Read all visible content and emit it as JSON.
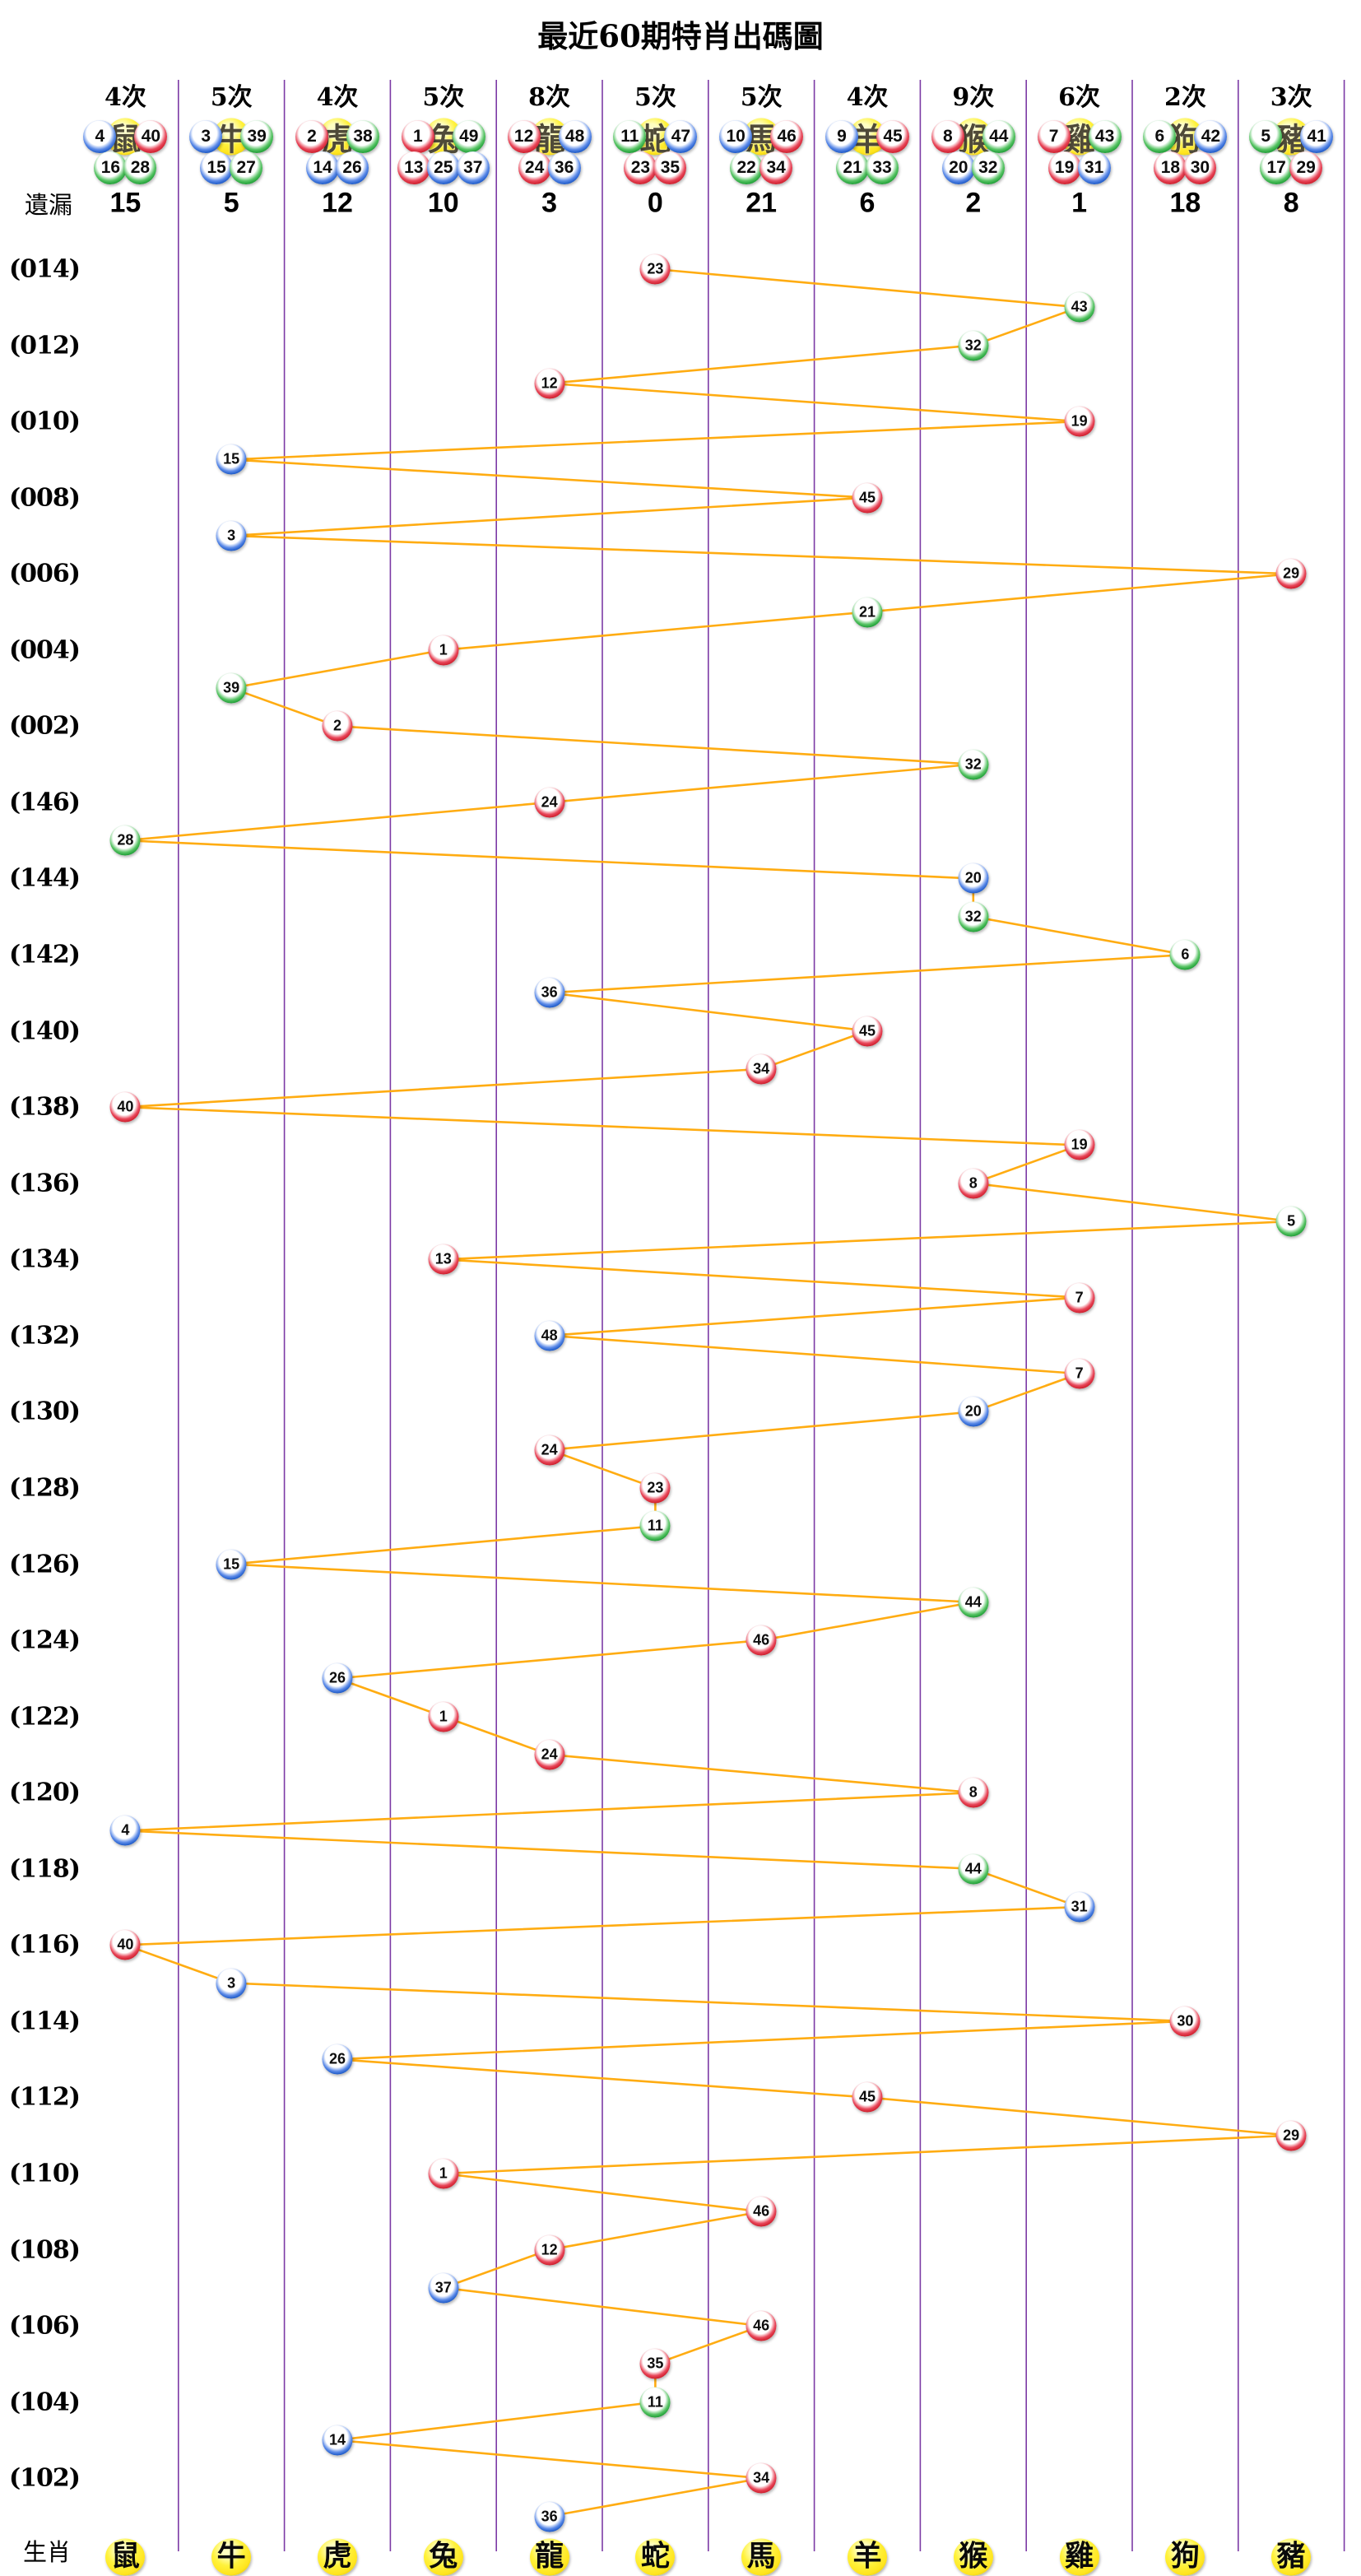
{
  "title": "最近60期特肖出碼圖",
  "labels": {
    "miss": "遺漏",
    "zodiac_row": "生肖"
  },
  "colors": {
    "red": "#d0202e",
    "blue": "#1f5bc8",
    "green": "#21a038",
    "yellow": "#ffe41e",
    "line": "#ffac12",
    "separator": "#7c3aa5"
  },
  "columns": [
    {
      "zodiac": "鼠",
      "times": "4次",
      "miss": "15",
      "main": [
        {
          "n": "4",
          "c": "blue"
        },
        {
          "n": "40",
          "c": "red"
        }
      ],
      "others": [
        {
          "n": "16",
          "c": "green"
        },
        {
          "n": "28",
          "c": "green"
        }
      ]
    },
    {
      "zodiac": "牛",
      "times": "5次",
      "miss": "5",
      "main": [
        {
          "n": "3",
          "c": "blue"
        },
        {
          "n": "39",
          "c": "green"
        }
      ],
      "others": [
        {
          "n": "15",
          "c": "blue"
        },
        {
          "n": "27",
          "c": "green"
        }
      ]
    },
    {
      "zodiac": "虎",
      "times": "4次",
      "miss": "12",
      "main": [
        {
          "n": "2",
          "c": "red"
        },
        {
          "n": "38",
          "c": "green"
        }
      ],
      "others": [
        {
          "n": "14",
          "c": "blue"
        },
        {
          "n": "26",
          "c": "blue"
        }
      ]
    },
    {
      "zodiac": "兔",
      "times": "5次",
      "miss": "10",
      "main": [
        {
          "n": "1",
          "c": "red"
        },
        {
          "n": "49",
          "c": "green"
        }
      ],
      "others": [
        {
          "n": "13",
          "c": "red"
        },
        {
          "n": "25",
          "c": "blue"
        },
        {
          "n": "37",
          "c": "blue"
        }
      ]
    },
    {
      "zodiac": "龍",
      "times": "8次",
      "miss": "3",
      "main": [
        {
          "n": "12",
          "c": "red"
        },
        {
          "n": "48",
          "c": "blue"
        }
      ],
      "others": [
        {
          "n": "24",
          "c": "red"
        },
        {
          "n": "36",
          "c": "blue"
        }
      ]
    },
    {
      "zodiac": "蛇",
      "times": "5次",
      "miss": "0",
      "main": [
        {
          "n": "11",
          "c": "green"
        },
        {
          "n": "47",
          "c": "blue"
        }
      ],
      "others": [
        {
          "n": "23",
          "c": "red"
        },
        {
          "n": "35",
          "c": "red"
        }
      ]
    },
    {
      "zodiac": "馬",
      "times": "5次",
      "miss": "21",
      "main": [
        {
          "n": "10",
          "c": "blue"
        },
        {
          "n": "46",
          "c": "red"
        }
      ],
      "others": [
        {
          "n": "22",
          "c": "green"
        },
        {
          "n": "34",
          "c": "red"
        }
      ]
    },
    {
      "zodiac": "羊",
      "times": "4次",
      "miss": "6",
      "main": [
        {
          "n": "9",
          "c": "blue"
        },
        {
          "n": "45",
          "c": "red"
        }
      ],
      "others": [
        {
          "n": "21",
          "c": "green"
        },
        {
          "n": "33",
          "c": "green"
        }
      ]
    },
    {
      "zodiac": "猴",
      "times": "9次",
      "miss": "2",
      "main": [
        {
          "n": "8",
          "c": "red"
        },
        {
          "n": "44",
          "c": "green"
        }
      ],
      "others": [
        {
          "n": "20",
          "c": "blue"
        },
        {
          "n": "32",
          "c": "green"
        }
      ]
    },
    {
      "zodiac": "雞",
      "times": "6次",
      "miss": "1",
      "main": [
        {
          "n": "7",
          "c": "red"
        },
        {
          "n": "43",
          "c": "green"
        }
      ],
      "others": [
        {
          "n": "19",
          "c": "red"
        },
        {
          "n": "31",
          "c": "blue"
        }
      ]
    },
    {
      "zodiac": "狗",
      "times": "2次",
      "miss": "18",
      "main": [
        {
          "n": "6",
          "c": "green"
        },
        {
          "n": "42",
          "c": "blue"
        }
      ],
      "others": [
        {
          "n": "18",
          "c": "red"
        },
        {
          "n": "30",
          "c": "red"
        }
      ]
    },
    {
      "zodiac": "豬",
      "times": "3次",
      "miss": "8",
      "main": [
        {
          "n": "5",
          "c": "green"
        },
        {
          "n": "41",
          "c": "blue"
        }
      ],
      "others": [
        {
          "n": "17",
          "c": "green"
        },
        {
          "n": "29",
          "c": "red"
        }
      ]
    }
  ],
  "chart_data": {
    "type": "line",
    "title": "最近60期特肖出碼圖",
    "x_categories": [
      "鼠",
      "牛",
      "虎",
      "兔",
      "龍",
      "蛇",
      "馬",
      "羊",
      "猴",
      "雞",
      "狗",
      "豬"
    ],
    "y_tick_labels": [
      "(014)",
      "(012)",
      "(010)",
      "(008)",
      "(006)",
      "(004)",
      "(002)",
      "(146)",
      "(144)",
      "(142)",
      "(140)",
      "(138)",
      "(136)",
      "(134)",
      "(132)",
      "(130)",
      "(128)",
      "(126)",
      "(124)",
      "(122)",
      "(120)",
      "(118)",
      "(116)",
      "(114)",
      "(112)",
      "(110)",
      "(108)",
      "(106)",
      "(104)",
      "(102)"
    ],
    "legend": "none",
    "grid": "vertical-only",
    "points": [
      {
        "p": "014",
        "z": "蛇",
        "n": 23,
        "c": "red"
      },
      {
        "p": "013",
        "z": "雞",
        "n": 43,
        "c": "green"
      },
      {
        "p": "012",
        "z": "猴",
        "n": 32,
        "c": "green"
      },
      {
        "p": "011",
        "z": "龍",
        "n": 12,
        "c": "red"
      },
      {
        "p": "010",
        "z": "雞",
        "n": 19,
        "c": "red"
      },
      {
        "p": "009",
        "z": "牛",
        "n": 15,
        "c": "blue"
      },
      {
        "p": "008",
        "z": "羊",
        "n": 45,
        "c": "red"
      },
      {
        "p": "007",
        "z": "牛",
        "n": 3,
        "c": "blue"
      },
      {
        "p": "006",
        "z": "豬",
        "n": 29,
        "c": "red"
      },
      {
        "p": "005",
        "z": "羊",
        "n": 21,
        "c": "green"
      },
      {
        "p": "004",
        "z": "兔",
        "n": 1,
        "c": "red"
      },
      {
        "p": "003",
        "z": "牛",
        "n": 39,
        "c": "green"
      },
      {
        "p": "002",
        "z": "虎",
        "n": 2,
        "c": "red"
      },
      {
        "p": "001",
        "z": "猴",
        "n": 32,
        "c": "green"
      },
      {
        "p": "146",
        "z": "龍",
        "n": 24,
        "c": "red"
      },
      {
        "p": "145",
        "z": "鼠",
        "n": 28,
        "c": "green"
      },
      {
        "p": "144",
        "z": "猴",
        "n": 20,
        "c": "blue"
      },
      {
        "p": "143",
        "z": "猴",
        "n": 32,
        "c": "green"
      },
      {
        "p": "142",
        "z": "狗",
        "n": 6,
        "c": "green"
      },
      {
        "p": "141",
        "z": "龍",
        "n": 36,
        "c": "blue"
      },
      {
        "p": "140",
        "z": "羊",
        "n": 45,
        "c": "red"
      },
      {
        "p": "139",
        "z": "馬",
        "n": 34,
        "c": "red"
      },
      {
        "p": "138",
        "z": "鼠",
        "n": 40,
        "c": "red"
      },
      {
        "p": "137",
        "z": "雞",
        "n": 19,
        "c": "red"
      },
      {
        "p": "136",
        "z": "猴",
        "n": 8,
        "c": "red"
      },
      {
        "p": "135",
        "z": "豬",
        "n": 5,
        "c": "green"
      },
      {
        "p": "134",
        "z": "兔",
        "n": 13,
        "c": "red"
      },
      {
        "p": "133",
        "z": "雞",
        "n": 7,
        "c": "red"
      },
      {
        "p": "132",
        "z": "龍",
        "n": 48,
        "c": "blue"
      },
      {
        "p": "131",
        "z": "雞",
        "n": 7,
        "c": "red"
      },
      {
        "p": "130",
        "z": "猴",
        "n": 20,
        "c": "blue"
      },
      {
        "p": "129",
        "z": "龍",
        "n": 24,
        "c": "red"
      },
      {
        "p": "128",
        "z": "蛇",
        "n": 23,
        "c": "red"
      },
      {
        "p": "127",
        "z": "蛇",
        "n": 11,
        "c": "green"
      },
      {
        "p": "126",
        "z": "牛",
        "n": 15,
        "c": "blue"
      },
      {
        "p": "125",
        "z": "猴",
        "n": 44,
        "c": "green"
      },
      {
        "p": "124",
        "z": "馬",
        "n": 46,
        "c": "red"
      },
      {
        "p": "123",
        "z": "虎",
        "n": 26,
        "c": "blue"
      },
      {
        "p": "122",
        "z": "兔",
        "n": 1,
        "c": "red"
      },
      {
        "p": "121",
        "z": "龍",
        "n": 24,
        "c": "red"
      },
      {
        "p": "120",
        "z": "猴",
        "n": 8,
        "c": "red"
      },
      {
        "p": "119",
        "z": "鼠",
        "n": 4,
        "c": "blue"
      },
      {
        "p": "118",
        "z": "猴",
        "n": 44,
        "c": "green"
      },
      {
        "p": "117",
        "z": "雞",
        "n": 31,
        "c": "blue"
      },
      {
        "p": "116",
        "z": "鼠",
        "n": 40,
        "c": "red"
      },
      {
        "p": "115",
        "z": "牛",
        "n": 3,
        "c": "blue"
      },
      {
        "p": "114",
        "z": "狗",
        "n": 30,
        "c": "red"
      },
      {
        "p": "113",
        "z": "虎",
        "n": 26,
        "c": "blue"
      },
      {
        "p": "112",
        "z": "羊",
        "n": 45,
        "c": "red"
      },
      {
        "p": "111",
        "z": "豬",
        "n": 29,
        "c": "red"
      },
      {
        "p": "110",
        "z": "兔",
        "n": 1,
        "c": "red"
      },
      {
        "p": "109",
        "z": "馬",
        "n": 46,
        "c": "red"
      },
      {
        "p": "108",
        "z": "龍",
        "n": 12,
        "c": "red"
      },
      {
        "p": "107",
        "z": "兔",
        "n": 37,
        "c": "blue"
      },
      {
        "p": "106",
        "z": "馬",
        "n": 46,
        "c": "red"
      },
      {
        "p": "105",
        "z": "蛇",
        "n": 35,
        "c": "red"
      },
      {
        "p": "104",
        "z": "蛇",
        "n": 11,
        "c": "green"
      },
      {
        "p": "103",
        "z": "虎",
        "n": 14,
        "c": "blue"
      },
      {
        "p": "102",
        "z": "馬",
        "n": 34,
        "c": "red"
      },
      {
        "p": "101",
        "z": "龍",
        "n": 36,
        "c": "blue"
      }
    ]
  }
}
